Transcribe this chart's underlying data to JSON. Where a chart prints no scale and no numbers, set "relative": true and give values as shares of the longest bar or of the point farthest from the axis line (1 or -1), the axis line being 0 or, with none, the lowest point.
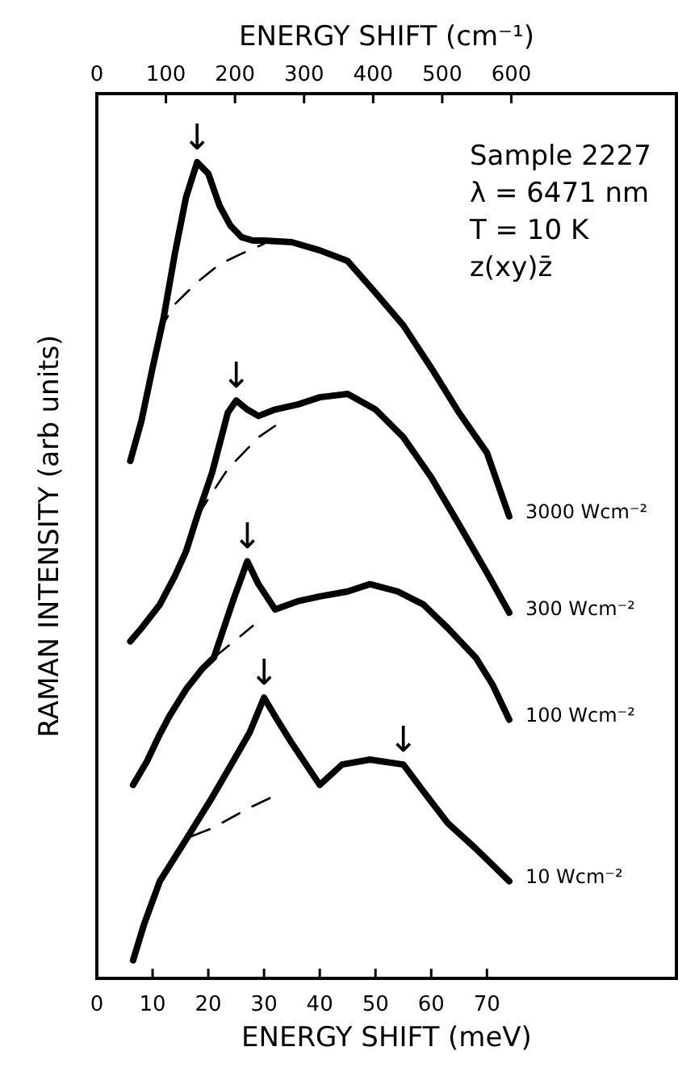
{
  "chart_data": {
    "type": "line",
    "relative": true,
    "xlabel": "ENERGY SHIFT (meV)",
    "ylabel": "RAMAN INTENSITY  (arb units)",
    "x2label": "ENERGY SHIFT (cm⁻¹)",
    "xlim": [
      0,
      104
    ],
    "xticks": [
      0,
      10,
      20,
      30,
      40,
      50,
      60,
      70
    ],
    "x2lim": [
      0,
      839
    ],
    "x2ticks": [
      0,
      100,
      200,
      300,
      400,
      500,
      600
    ],
    "line_style": "solid",
    "legend": false,
    "grid": false,
    "series": [
      {
        "name": "3000 Wcm⁻²",
        "color": "#000000",
        "x": [
          6,
          8,
          10,
          12,
          14,
          16,
          18,
          20,
          22,
          24,
          26,
          28,
          30,
          35,
          40,
          45,
          50,
          55,
          60,
          65,
          70,
          74
        ],
        "values": [
          0.634,
          0.683,
          0.748,
          0.81,
          0.888,
          0.957,
          1,
          0.986,
          0.947,
          0.922,
          0.908,
          0.904,
          0.904,
          0.902,
          0.892,
          0.879,
          0.84,
          0.8,
          0.748,
          0.693,
          0.644,
          0.566
        ]
      },
      {
        "color": "#000000",
        "line_style": "dashed",
        "x": [
          11,
          14,
          18,
          22,
          26,
          30
        ],
        "values": [
          0.791,
          0.826,
          0.853,
          0.875,
          0.888,
          0.9
        ]
      },
      {
        "name": "300 Wcm⁻²",
        "color": "#000000",
        "x": [
          6,
          8,
          11.3,
          14,
          16,
          18,
          20.7,
          23.5,
          25,
          27,
          29,
          32,
          36,
          40,
          45,
          50,
          55,
          60,
          65,
          70,
          74
        ],
        "values": [
          0.413,
          0.429,
          0.458,
          0.493,
          0.523,
          0.566,
          0.62,
          0.693,
          0.708,
          0.697,
          0.689,
          0.697,
          0.703,
          0.712,
          0.716,
          0.697,
          0.663,
          0.614,
          0.556,
          0.497,
          0.448
        ]
      },
      {
        "color": "#000000",
        "line_style": "dashed",
        "x": [
          18,
          20.7,
          23.5,
          29,
          32
        ],
        "values": [
          0.566,
          0.595,
          0.624,
          0.663,
          0.677
        ]
      },
      {
        "name": "100 Wcm⁻²",
        "color": "#000000",
        "x": [
          6.5,
          9,
          11,
          13,
          16,
          19,
          21,
          24.5,
          27,
          29,
          32,
          36,
          40,
          45,
          49,
          54,
          58.6,
          63,
          68,
          71,
          74
        ],
        "values": [
          0.237,
          0.266,
          0.295,
          0.321,
          0.354,
          0.38,
          0.393,
          0.464,
          0.511,
          0.483,
          0.452,
          0.462,
          0.468,
          0.474,
          0.483,
          0.474,
          0.458,
          0.429,
          0.393,
          0.36,
          0.317
        ]
      },
      {
        "color": "#000000",
        "line_style": "dashed",
        "x": [
          21,
          25,
          28
        ],
        "values": [
          0.393,
          0.415,
          0.432
        ]
      },
      {
        "name": "10 Wcm⁻²",
        "color": "#000000",
        "x": [
          6.5,
          8.5,
          11.3,
          16,
          20.8,
          23.6,
          27.4,
          30,
          32,
          35,
          40,
          44,
          49,
          55,
          58.6,
          63,
          68,
          74
        ],
        "values": [
          0.022,
          0.067,
          0.119,
          0.17,
          0.223,
          0.256,
          0.301,
          0.344,
          0.321,
          0.288,
          0.237,
          0.262,
          0.268,
          0.262,
          0.229,
          0.19,
          0.159,
          0.119
        ]
      },
      {
        "color": "#000000",
        "line_style": "dashed",
        "x": [
          17,
          20.7,
          27.4,
          31.7
        ],
        "values": [
          0.174,
          0.184,
          0.209,
          0.223
        ]
      }
    ],
    "annotations": [
      "Sample 2227",
      "λ = 6471 nm",
      "T = 10 K",
      "z(xy)z̄",
      {
        "text": "↓",
        "x": 18,
        "y": 1
      },
      {
        "text": "↓",
        "x": 25,
        "y": 0.708
      },
      {
        "text": "↓",
        "x": 27,
        "y": 0.511
      },
      {
        "text": "↓",
        "x": 30,
        "y": 0.344
      },
      {
        "text": "↓",
        "x": 55,
        "y": 0.262
      }
    ]
  }
}
